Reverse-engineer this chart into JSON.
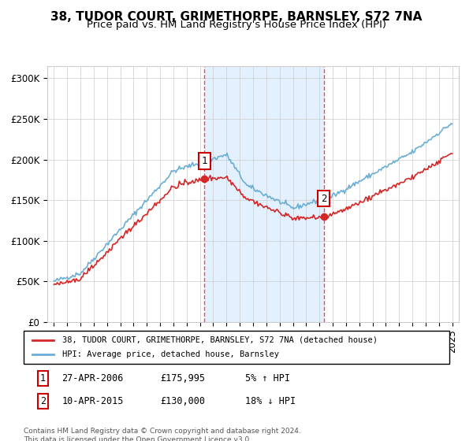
{
  "title": "38, TUDOR COURT, GRIMETHORPE, BARNSLEY, S72 7NA",
  "subtitle": "Price paid vs. HM Land Registry's House Price Index (HPI)",
  "ylabel": "",
  "xlabel": "",
  "ylim": [
    0,
    315000
  ],
  "yticks": [
    0,
    50000,
    100000,
    150000,
    200000,
    250000,
    300000
  ],
  "ytick_labels": [
    "£0",
    "£50K",
    "£100K",
    "£150K",
    "£200K",
    "£250K",
    "£300K"
  ],
  "sale1_date_str": "27-APR-2006",
  "sale1_price": 175995,
  "sale1_pct": "5% ↑ HPI",
  "sale2_date_str": "10-APR-2015",
  "sale2_price": 130000,
  "sale2_pct": "18% ↓ HPI",
  "hpi_color": "#6baed6",
  "price_color": "#d62728",
  "shade_color": "#ddeeff",
  "vline_color": "#ff4444",
  "legend_label_red": "38, TUDOR COURT, GRIMETHORPE, BARNSLEY, S72 7NA (detached house)",
  "legend_label_blue": "HPI: Average price, detached house, Barnsley",
  "footer": "Contains HM Land Registry data © Crown copyright and database right 2024.\nThis data is licensed under the Open Government Licence v3.0.",
  "title_fontsize": 11,
  "subtitle_fontsize": 9.5,
  "tick_fontsize": 8.5
}
